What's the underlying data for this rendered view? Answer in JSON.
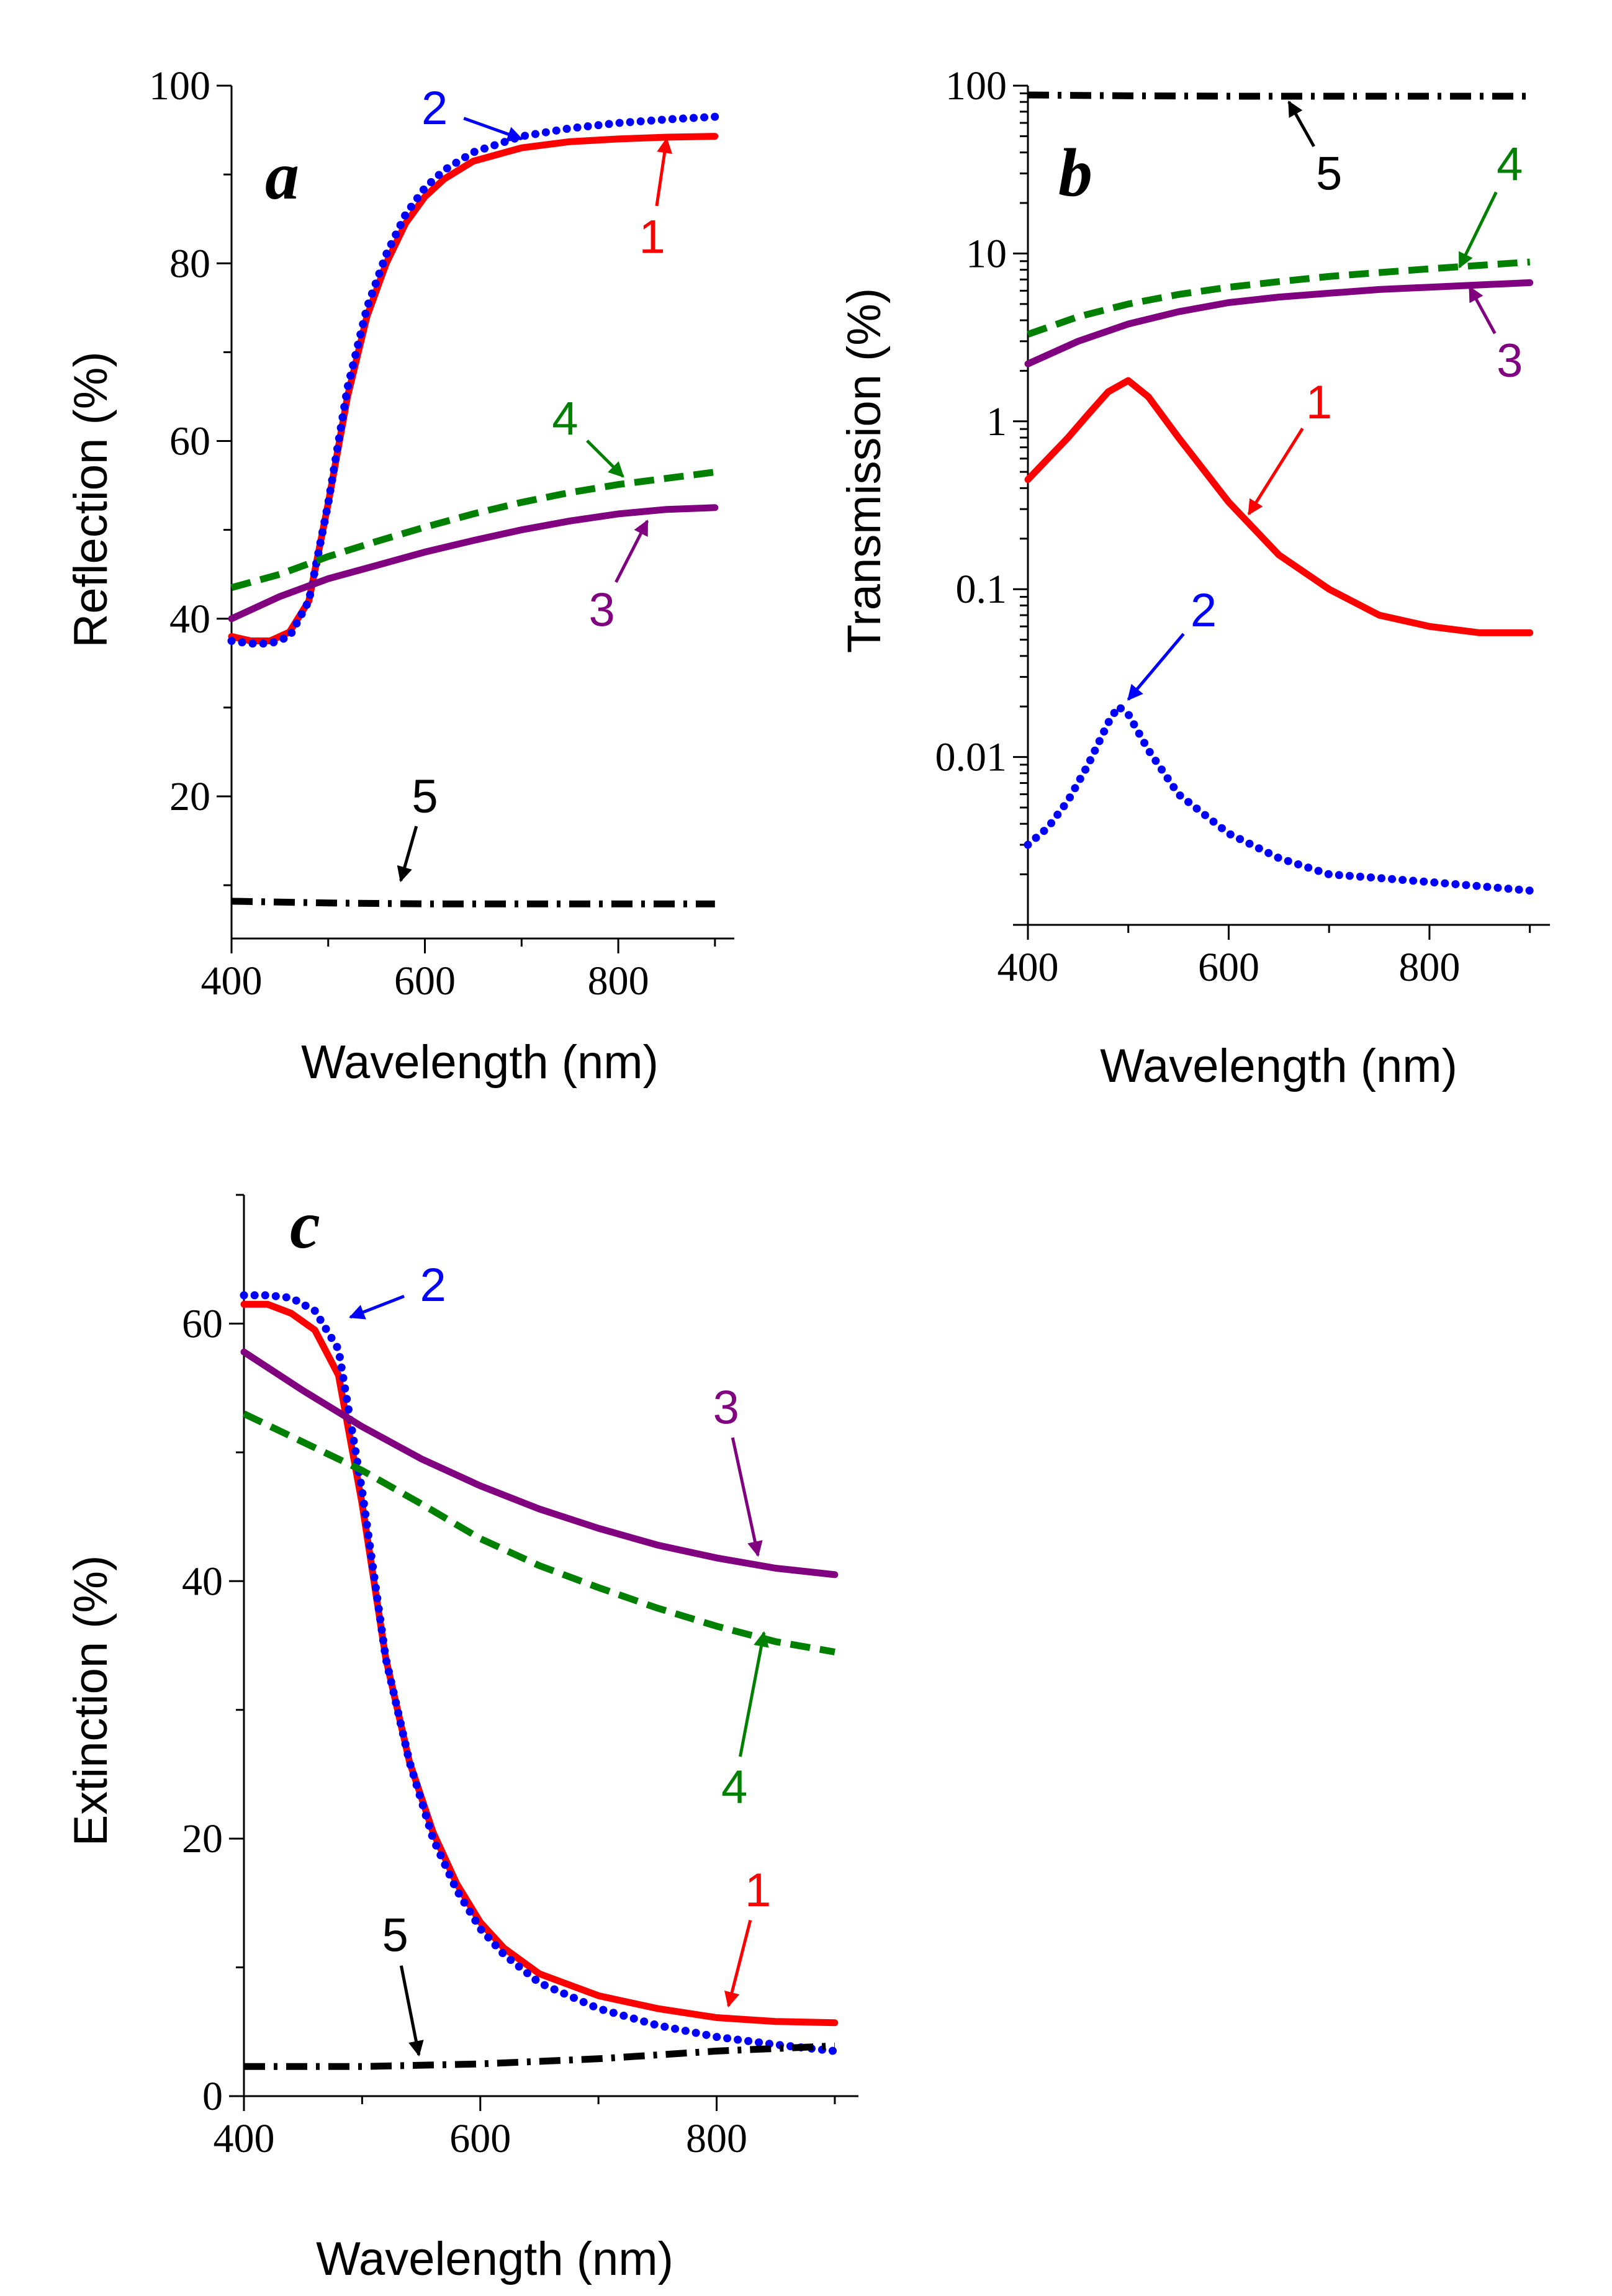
{
  "colors": {
    "1": "#ff0000",
    "2": "#0000ff",
    "3": "#800080",
    "4": "#008000",
    "5": "#000000"
  },
  "chart_data": [
    {
      "type": "line",
      "panel": "a",
      "xlabel": "Wavelength (nm)",
      "ylabel": "Reflection (%)",
      "xlim": [
        400,
        920
      ],
      "ylim": [
        4,
        100
      ],
      "yscale": "linear",
      "xticks": [
        400,
        600,
        800
      ],
      "yticks": [
        20,
        40,
        60,
        80,
        100
      ],
      "series": [
        {
          "name": "1",
          "style": "solid",
          "x": [
            400,
            420,
            440,
            460,
            480,
            500,
            520,
            540,
            560,
            580,
            600,
            620,
            650,
            700,
            750,
            800,
            850,
            900
          ],
          "y": [
            38,
            37.5,
            37.5,
            38.5,
            42,
            53,
            65,
            74,
            80,
            84.5,
            87.5,
            89.5,
            91.5,
            93,
            93.7,
            94,
            94.2,
            94.3
          ]
        },
        {
          "name": "2",
          "style": "dotted",
          "x": [
            400,
            420,
            440,
            460,
            480,
            500,
            520,
            540,
            560,
            580,
            600,
            620,
            650,
            700,
            750,
            800,
            850,
            900
          ],
          "y": [
            37.5,
            37.2,
            37.2,
            38,
            42,
            53,
            66,
            75,
            81,
            85.5,
            88.5,
            90.5,
            92.5,
            94.3,
            95.2,
            95.8,
            96.2,
            96.5
          ]
        },
        {
          "name": "3",
          "style": "solid",
          "x": [
            400,
            450,
            500,
            550,
            600,
            650,
            700,
            750,
            800,
            850,
            900
          ],
          "y": [
            40,
            42.5,
            44.5,
            46,
            47.5,
            48.8,
            50,
            51,
            51.8,
            52.3,
            52.5
          ]
        },
        {
          "name": "4",
          "style": "dashed",
          "x": [
            400,
            450,
            500,
            550,
            600,
            650,
            700,
            750,
            800,
            850,
            900
          ],
          "y": [
            43.5,
            45,
            47,
            48.7,
            50.3,
            51.8,
            53.1,
            54.2,
            55.1,
            55.8,
            56.5
          ]
        },
        {
          "name": "5",
          "style": "dashdot",
          "x": [
            400,
            500,
            600,
            700,
            800,
            900
          ],
          "y": [
            8.2,
            8,
            7.9,
            7.9,
            7.9,
            7.9
          ]
        }
      ],
      "annotations": [
        {
          "text": "1",
          "series": "1",
          "x": 835,
          "y": 83,
          "point_x": 850,
          "point_y": 94
        },
        {
          "text": "2",
          "series": "2",
          "x": 610,
          "y": 97.5,
          "point_x": 700,
          "point_y": 94
        },
        {
          "text": "3",
          "series": "3",
          "x": 783,
          "y": 41,
          "point_x": 830,
          "point_y": 51
        },
        {
          "text": "4",
          "series": "4",
          "x": 745,
          "y": 62.5,
          "point_x": 805,
          "point_y": 56
        },
        {
          "text": "5",
          "series": "5",
          "x": 600,
          "y": 20,
          "point_x": 575,
          "point_y": 10.5
        }
      ]
    },
    {
      "type": "line",
      "panel": "b",
      "xlabel": "Wavelength (nm)",
      "ylabel": "Transmission (%)",
      "xlim": [
        400,
        920
      ],
      "ylim": [
        0.001,
        100
      ],
      "yscale": "log",
      "xticks": [
        400,
        600,
        800
      ],
      "yticks": [
        0.01,
        0.1,
        1,
        10,
        100
      ],
      "ytick_labels": [
        "0.01",
        "0.1",
        "1",
        "10",
        "100"
      ],
      "series": [
        {
          "name": "1",
          "style": "solid",
          "x": [
            400,
            420,
            440,
            460,
            480,
            500,
            520,
            550,
            600,
            650,
            700,
            750,
            800,
            850,
            900
          ],
          "y": [
            0.45,
            0.6,
            0.8,
            1.1,
            1.5,
            1.75,
            1.4,
            0.8,
            0.33,
            0.16,
            0.1,
            0.07,
            0.06,
            0.055,
            0.055
          ]
        },
        {
          "name": "2",
          "style": "dotted",
          "x": [
            400,
            420,
            440,
            460,
            480,
            490,
            500,
            520,
            550,
            600,
            650,
            700,
            750,
            800,
            850,
            900
          ],
          "y": [
            0.003,
            0.0038,
            0.0055,
            0.009,
            0.016,
            0.02,
            0.018,
            0.011,
            0.006,
            0.0035,
            0.0025,
            0.002,
            0.0019,
            0.0018,
            0.0017,
            0.0016
          ]
        },
        {
          "name": "3",
          "style": "solid",
          "x": [
            400,
            450,
            500,
            550,
            600,
            650,
            700,
            750,
            800,
            850,
            900
          ],
          "y": [
            2.2,
            3.0,
            3.8,
            4.5,
            5.1,
            5.5,
            5.8,
            6.1,
            6.3,
            6.5,
            6.7
          ]
        },
        {
          "name": "4",
          "style": "dashed",
          "x": [
            400,
            450,
            500,
            550,
            600,
            650,
            700,
            750,
            800,
            850,
            900
          ],
          "y": [
            3.3,
            4.2,
            5.0,
            5.7,
            6.3,
            6.8,
            7.3,
            7.7,
            8.1,
            8.5,
            8.9
          ]
        },
        {
          "name": "5",
          "style": "dashdot",
          "x": [
            400,
            500,
            600,
            700,
            800,
            900
          ],
          "y": [
            88,
            87,
            86.5,
            86.5,
            86.5,
            86.5
          ]
        }
      ],
      "annotations": [
        {
          "text": "1",
          "series": "1",
          "x": 690,
          "y": 1.3,
          "point_x": 620,
          "point_y": 0.28
        },
        {
          "text": "2",
          "series": "2",
          "x": 575,
          "y": 0.075,
          "point_x": 500,
          "point_y": 0.022
        },
        {
          "text": "3",
          "series": "3",
          "x": 880,
          "y": 2.3,
          "point_x": 840,
          "point_y": 6.3
        },
        {
          "text": "4",
          "series": "4",
          "x": 880,
          "y": 34,
          "point_x": 830,
          "point_y": 8.3
        },
        {
          "text": "5",
          "series": "5",
          "x": 700,
          "y": 30,
          "point_x": 660,
          "point_y": 80
        }
      ]
    },
    {
      "type": "line",
      "panel": "c",
      "xlabel": "Wavelength (nm)",
      "ylabel": "Extinction (%)",
      "xlim": [
        400,
        920
      ],
      "ylim": [
        0,
        70
      ],
      "yscale": "linear",
      "xticks": [
        400,
        600,
        800
      ],
      "yticks": [
        0,
        20,
        40,
        60
      ],
      "series": [
        {
          "name": "1",
          "style": "solid",
          "x": [
            400,
            420,
            440,
            460,
            480,
            500,
            520,
            540,
            560,
            580,
            600,
            620,
            650,
            700,
            750,
            800,
            850,
            900
          ],
          "y": [
            61.5,
            61.5,
            60.8,
            59.5,
            56,
            46,
            34,
            26,
            20.5,
            16.5,
            13.5,
            11.5,
            9.5,
            7.8,
            6.8,
            6.1,
            5.8,
            5.7
          ]
        },
        {
          "name": "2",
          "style": "dotted",
          "x": [
            400,
            420,
            440,
            460,
            480,
            500,
            520,
            540,
            560,
            580,
            600,
            620,
            650,
            700,
            750,
            800,
            850,
            900
          ],
          "y": [
            62.2,
            62.2,
            62,
            61,
            58,
            47,
            34,
            26,
            20,
            16,
            13,
            11,
            8.8,
            6.8,
            5.5,
            4.6,
            4.0,
            3.5
          ]
        },
        {
          "name": "3",
          "style": "solid",
          "x": [
            400,
            450,
            500,
            550,
            600,
            650,
            700,
            750,
            800,
            850,
            900
          ],
          "y": [
            57.8,
            54.8,
            52,
            49.5,
            47.4,
            45.6,
            44.1,
            42.8,
            41.8,
            41,
            40.5
          ]
        },
        {
          "name": "4",
          "style": "dashed",
          "x": [
            400,
            450,
            500,
            550,
            600,
            650,
            700,
            750,
            800,
            850,
            900
          ],
          "y": [
            53,
            50.8,
            48.6,
            46,
            43.3,
            41.2,
            39.5,
            37.9,
            36.5,
            35.3,
            34.5
          ]
        },
        {
          "name": "5",
          "style": "dashdot",
          "x": [
            400,
            500,
            600,
            700,
            800,
            900
          ],
          "y": [
            2.3,
            2.3,
            2.5,
            2.9,
            3.5,
            3.9
          ]
        }
      ],
      "annotations": [
        {
          "text": "1",
          "series": "1",
          "x": 835,
          "y": 16,
          "point_x": 810,
          "point_y": 7
        },
        {
          "text": "2",
          "series": "2",
          "x": 560,
          "y": 63,
          "point_x": 490,
          "point_y": 60.5
        },
        {
          "text": "3",
          "series": "3",
          "x": 808,
          "y": 53.5,
          "point_x": 835,
          "point_y": 42
        },
        {
          "text": "4",
          "series": "4",
          "x": 815,
          "y": 24,
          "point_x": 840,
          "point_y": 36
        },
        {
          "text": "5",
          "series": "5",
          "x": 528,
          "y": 12.5,
          "point_x": 548,
          "point_y": 3.2
        }
      ]
    }
  ]
}
